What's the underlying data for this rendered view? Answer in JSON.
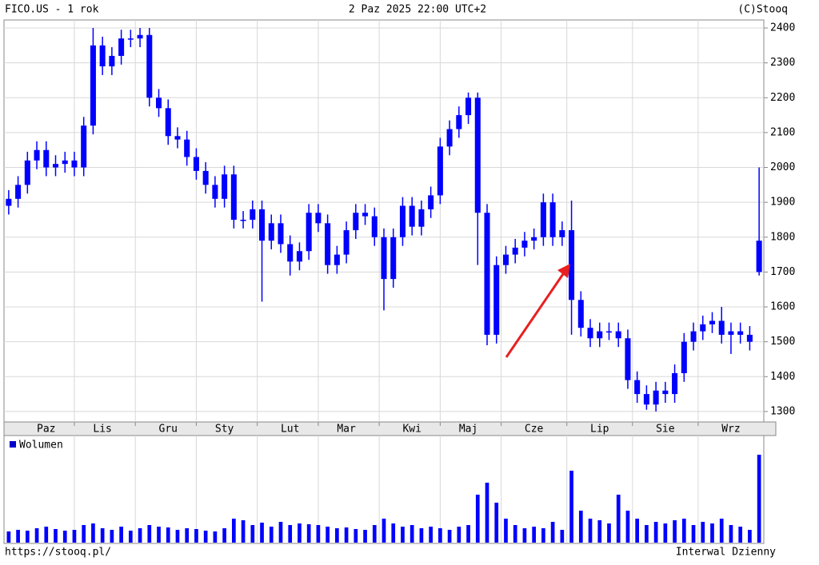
{
  "chart_data": {
    "type": "candlestick",
    "title": "FICO.US - 1 rok",
    "subtitle": "2 Paz 2025 22:00 UTC+2",
    "source": "(C)Stooq",
    "footer_left": "https://stooq.pl/",
    "footer_right": "Interwal Dzienny",
    "color": "#0000ff",
    "grid": true,
    "categories": [
      null,
      null,
      null,
      null,
      "Paz",
      null,
      null,
      null,
      null,
      null,
      "Lis",
      null,
      null,
      null,
      null,
      null,
      null,
      "Gru",
      null,
      null,
      null,
      null,
      null,
      "Sty",
      null,
      null,
      null,
      null,
      null,
      null,
      "Lut",
      null,
      null,
      null,
      null,
      null,
      "Mar",
      null,
      null,
      null,
      null,
      null,
      null,
      "Kwi",
      null,
      null,
      null,
      null,
      null,
      "Maj",
      null,
      null,
      null,
      null,
      null,
      null,
      "Cze",
      null,
      null,
      null,
      null,
      null,
      null,
      "Lip",
      null,
      null,
      null,
      null,
      null,
      null,
      "Sie",
      null,
      null,
      null,
      null,
      null,
      null,
      "Wrz",
      null,
      null,
      null
    ],
    "open": [
      1890,
      1910,
      1950,
      2020,
      2050,
      2000,
      2010,
      2020,
      2000,
      2120,
      2350,
      2290,
      2320,
      2370,
      2370,
      2380,
      2200,
      2170,
      2090,
      2080,
      2030,
      1990,
      1950,
      1910,
      1980,
      1850,
      1850,
      1880,
      1790,
      1840,
      1780,
      1730,
      1760,
      1870,
      1840,
      1720,
      1750,
      1820,
      1870,
      1860,
      1800,
      1680,
      1800,
      1890,
      1830,
      1880,
      1920,
      2060,
      2110,
      2150,
      2200,
      1870,
      1520,
      1720,
      1750,
      1770,
      1790,
      1800,
      1900,
      1800,
      1820,
      1620,
      1540,
      1510,
      1530,
      1530,
      1510,
      1390,
      1350,
      1320,
      1360,
      1350,
      1410,
      1500,
      1530,
      1550,
      1560,
      1520,
      1530,
      1520,
      1700
    ],
    "high": [
      1935,
      1975,
      2045,
      2075,
      2075,
      2035,
      2045,
      2045,
      2145,
      2400,
      2375,
      2345,
      2395,
      2395,
      2400,
      2400,
      2225,
      2195,
      2115,
      2105,
      2055,
      2015,
      1975,
      2005,
      2005,
      1875,
      1905,
      1905,
      1865,
      1865,
      1805,
      1785,
      1895,
      1895,
      1865,
      1775,
      1845,
      1895,
      1895,
      1885,
      1825,
      1825,
      1915,
      1915,
      1905,
      1945,
      2085,
      2135,
      2175,
      2215,
      2215,
      1895,
      1745,
      1775,
      1795,
      1815,
      1825,
      1925,
      1925,
      1845,
      1905,
      1645,
      1565,
      1555,
      1555,
      1555,
      1535,
      1415,
      1375,
      1385,
      1385,
      1435,
      1525,
      1555,
      1575,
      1585,
      1600,
      1555,
      1555,
      1545,
      2000
    ],
    "low": [
      1865,
      1885,
      1925,
      1995,
      1975,
      1975,
      1985,
      1975,
      1975,
      2095,
      2265,
      2265,
      2295,
      2345,
      2345,
      2175,
      2145,
      2065,
      2055,
      2005,
      1965,
      1925,
      1885,
      1885,
      1825,
      1825,
      1825,
      1615,
      1765,
      1755,
      1690,
      1705,
      1735,
      1815,
      1695,
      1695,
      1725,
      1795,
      1835,
      1775,
      1590,
      1655,
      1775,
      1805,
      1805,
      1855,
      1895,
      2035,
      2085,
      2125,
      1720,
      1490,
      1495,
      1695,
      1725,
      1745,
      1765,
      1775,
      1775,
      1775,
      1520,
      1515,
      1485,
      1485,
      1505,
      1485,
      1365,
      1325,
      1305,
      1300,
      1325,
      1325,
      1385,
      1475,
      1505,
      1525,
      1495,
      1465,
      1495,
      1475,
      1690
    ],
    "close": [
      1910,
      1950,
      2020,
      2050,
      2000,
      2010,
      2020,
      2000,
      2120,
      2350,
      2290,
      2320,
      2370,
      2370,
      2380,
      2200,
      2170,
      2090,
      2080,
      2030,
      1990,
      1950,
      1910,
      1980,
      1850,
      1850,
      1880,
      1790,
      1840,
      1780,
      1730,
      1760,
      1870,
      1840,
      1720,
      1750,
      1820,
      1870,
      1860,
      1800,
      1680,
      1800,
      1890,
      1830,
      1880,
      1920,
      2060,
      2110,
      2150,
      2200,
      1870,
      1520,
      1720,
      1750,
      1770,
      1790,
      1800,
      1900,
      1800,
      1820,
      1620,
      1540,
      1510,
      1530,
      1530,
      1510,
      1390,
      1350,
      1320,
      1360,
      1350,
      1410,
      1500,
      1530,
      1550,
      1560,
      1520,
      1530,
      1520,
      1500,
      1790
    ],
    "volume": {
      "name": "Wolumen",
      "values": [
        14,
        16,
        15,
        18,
        20,
        17,
        15,
        16,
        22,
        24,
        18,
        16,
        20,
        15,
        18,
        22,
        20,
        19,
        16,
        18,
        17,
        15,
        14,
        18,
        30,
        28,
        22,
        25,
        20,
        26,
        22,
        24,
        23,
        22,
        20,
        18,
        19,
        17,
        16,
        22,
        30,
        24,
        20,
        22,
        18,
        20,
        18,
        16,
        20,
        22,
        60,
        75,
        50,
        30,
        22,
        18,
        20,
        18,
        26,
        16,
        90,
        40,
        30,
        28,
        24,
        60,
        40,
        30,
        22,
        26,
        24,
        28,
        30,
        22,
        26,
        24,
        30,
        22,
        20,
        16,
        110
      ]
    },
    "ylim": [
      1270,
      2423
    ],
    "yticks": [
      1300,
      1400,
      1500,
      1600,
      1700,
      1800,
      1900,
      2000,
      2100,
      2200,
      2300,
      2400
    ]
  }
}
